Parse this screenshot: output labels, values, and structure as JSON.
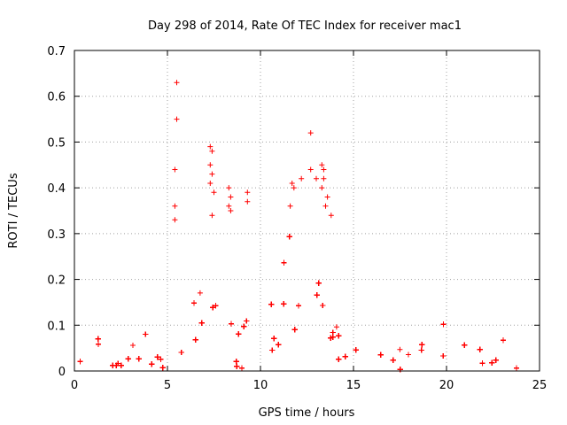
{
  "chart_data": {
    "type": "scatter",
    "title": "Day 298 of 2014, Rate Of TEC Index for receiver mac1",
    "xlabel": "GPS time / hours",
    "ylabel": "ROTI / TECUs",
    "xlim": [
      0,
      25
    ],
    "ylim": [
      0,
      0.7
    ],
    "xticks": [
      "0",
      "5",
      "10",
      "15",
      "20",
      "25"
    ],
    "yticks": [
      "0",
      "0.1",
      "0.2",
      "0.3",
      "0.4",
      "0.5",
      "0.6",
      "0.7"
    ],
    "grid": true,
    "marker": "+",
    "color": "#ff0000",
    "x_coverage_hours": [
      0,
      23.9
    ],
    "envelope": {
      "x": [
        0,
        0.5,
        1,
        1.5,
        2,
        2.5,
        3,
        3.5,
        4,
        4.5,
        5,
        5.5,
        6,
        6.5,
        7,
        7.5,
        8,
        8.5,
        9,
        9.5,
        10,
        10.5,
        11,
        11.5,
        12,
        12.5,
        13,
        13.5,
        14,
        14.5,
        15,
        15.5,
        16,
        16.5,
        17,
        17.5,
        18,
        18.5,
        19,
        19.5,
        20,
        20.5,
        21,
        21.5,
        22,
        22.5,
        23,
        23.5,
        23.9
      ],
      "upper": [
        0.07,
        0.13,
        0.17,
        0.12,
        0.04,
        0.08,
        0.12,
        0.06,
        0.1,
        0.14,
        0.19,
        0.24,
        0.28,
        0.17,
        0.2,
        0.27,
        0.25,
        0.24,
        0.26,
        0.27,
        0.28,
        0.25,
        0.28,
        0.3,
        0.32,
        0.34,
        0.32,
        0.36,
        0.31,
        0.26,
        0.2,
        0.17,
        0.22,
        0.14,
        0.16,
        0.14,
        0.2,
        0.17,
        0.14,
        0.11,
        0.1,
        0.1,
        0.07,
        0.07,
        0.05,
        0.06,
        0.09,
        0.05,
        0.06
      ],
      "typical": [
        0.03,
        0.05,
        0.06,
        0.05,
        0.02,
        0.03,
        0.04,
        0.03,
        0.04,
        0.05,
        0.07,
        0.08,
        0.09,
        0.07,
        0.07,
        0.09,
        0.09,
        0.08,
        0.09,
        0.09,
        0.1,
        0.09,
        0.1,
        0.11,
        0.12,
        0.12,
        0.12,
        0.12,
        0.11,
        0.09,
        0.08,
        0.07,
        0.07,
        0.06,
        0.06,
        0.05,
        0.07,
        0.06,
        0.05,
        0.04,
        0.04,
        0.04,
        0.03,
        0.03,
        0.02,
        0.02,
        0.03,
        0.02,
        0.02
      ]
    },
    "outliers": [
      {
        "x": 5.5,
        "y": 0.63
      },
      {
        "x": 5.5,
        "y": 0.55
      },
      {
        "x": 5.4,
        "y": 0.44
      },
      {
        "x": 5.4,
        "y": 0.36
      },
      {
        "x": 5.4,
        "y": 0.33
      },
      {
        "x": 7.3,
        "y": 0.49
      },
      {
        "x": 7.4,
        "y": 0.48
      },
      {
        "x": 7.3,
        "y": 0.45
      },
      {
        "x": 7.4,
        "y": 0.43
      },
      {
        "x": 7.3,
        "y": 0.41
      },
      {
        "x": 7.5,
        "y": 0.39
      },
      {
        "x": 7.4,
        "y": 0.34
      },
      {
        "x": 8.3,
        "y": 0.4
      },
      {
        "x": 8.4,
        "y": 0.38
      },
      {
        "x": 8.3,
        "y": 0.36
      },
      {
        "x": 8.4,
        "y": 0.35
      },
      {
        "x": 9.3,
        "y": 0.39
      },
      {
        "x": 9.3,
        "y": 0.37
      },
      {
        "x": 11.7,
        "y": 0.41
      },
      {
        "x": 11.8,
        "y": 0.4
      },
      {
        "x": 11.6,
        "y": 0.36
      },
      {
        "x": 12.2,
        "y": 0.42
      },
      {
        "x": 12.7,
        "y": 0.52
      },
      {
        "x": 12.7,
        "y": 0.44
      },
      {
        "x": 13.0,
        "y": 0.42
      },
      {
        "x": 13.3,
        "y": 0.45
      },
      {
        "x": 13.4,
        "y": 0.44
      },
      {
        "x": 13.4,
        "y": 0.42
      },
      {
        "x": 13.3,
        "y": 0.4
      },
      {
        "x": 13.6,
        "y": 0.38
      },
      {
        "x": 13.5,
        "y": 0.36
      },
      {
        "x": 13.8,
        "y": 0.34
      }
    ]
  }
}
